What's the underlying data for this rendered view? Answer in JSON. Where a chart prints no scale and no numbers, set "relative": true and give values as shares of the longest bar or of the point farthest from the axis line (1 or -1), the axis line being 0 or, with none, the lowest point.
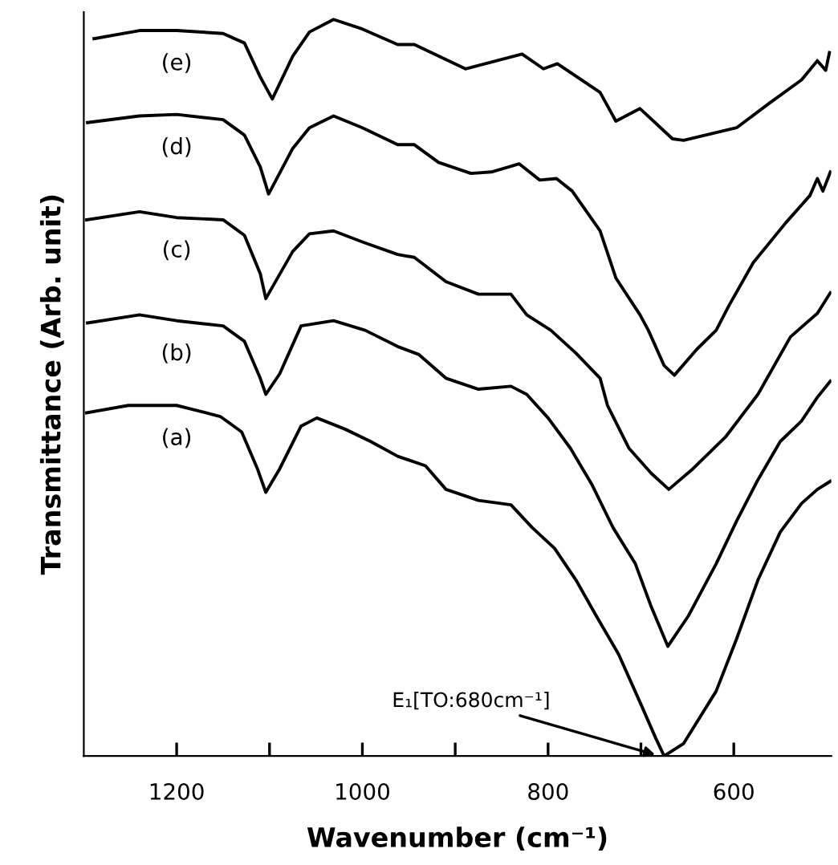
{
  "chart_data": {
    "type": "line",
    "relative": true,
    "xlabel": "Wavenumber (cm⁻¹)",
    "ylabel": "Transmittance (Arb. unit)",
    "xlim": [
      1300,
      495
    ],
    "xticks": [
      1200,
      {
        "value": 1100,
        "label": null
      },
      1000,
      {
        "value": 900,
        "label": null
      },
      800,
      {
        "value": 700,
        "label": null
      },
      600
    ],
    "grid": false,
    "legend": false,
    "marker": "none",
    "line_style": "solid",
    "tick_labels": "x",
    "annotations": [
      {
        "text": "E₁[TO:680cm⁻¹]",
        "x": 680,
        "y": 0
      }
    ],
    "series": [
      {
        "name": "(e)",
        "color": "#000000",
        "x": [
          1289,
          1240,
          1200,
          1150,
          1127,
          1110,
          1097,
          1075,
          1057,
          1031,
          1000,
          962,
          944,
          889,
          828,
          805,
          790,
          744,
          727,
          701,
          666,
          654,
          597,
          562,
          527,
          510,
          501,
          497
        ],
        "values": [
          0.974,
          0.985,
          0.985,
          0.981,
          0.968,
          0.922,
          0.892,
          0.95,
          0.983,
          1.0,
          0.987,
          0.966,
          0.966,
          0.933,
          0.953,
          0.933,
          0.94,
          0.901,
          0.862,
          0.879,
          0.838,
          0.836,
          0.853,
          0.886,
          0.918,
          0.944,
          0.931,
          0.955
        ]
      },
      {
        "name": "(d)",
        "color": "#000000",
        "x": [
          1296,
          1240,
          1200,
          1150,
          1127,
          1110,
          1101,
          1075,
          1057,
          1031,
          1000,
          962,
          944,
          918,
          883,
          861,
          831,
          809,
          791,
          774,
          744,
          727,
          701,
          692,
          675,
          664,
          640,
          619,
          605,
          579,
          544,
          518,
          510,
          504,
          496
        ],
        "values": [
          0.86,
          0.869,
          0.871,
          0.864,
          0.843,
          0.8,
          0.763,
          0.825,
          0.853,
          0.869,
          0.853,
          0.83,
          0.83,
          0.806,
          0.791,
          0.793,
          0.804,
          0.782,
          0.784,
          0.767,
          0.713,
          0.649,
          0.599,
          0.578,
          0.53,
          0.517,
          0.552,
          0.578,
          0.612,
          0.67,
          0.724,
          0.761,
          0.784,
          0.767,
          0.793
        ]
      },
      {
        "name": "(c)",
        "color": "#000000",
        "x": [
          1297,
          1240,
          1200,
          1150,
          1127,
          1110,
          1104,
          1075,
          1057,
          1031,
          1000,
          962,
          944,
          910,
          875,
          840,
          823,
          797,
          770,
          744,
          736,
          713,
          689,
          670,
          644,
          609,
          574,
          539,
          510,
          496
        ],
        "values": [
          0.728,
          0.739,
          0.731,
          0.728,
          0.707,
          0.655,
          0.621,
          0.685,
          0.709,
          0.713,
          0.698,
          0.681,
          0.677,
          0.644,
          0.627,
          0.627,
          0.599,
          0.578,
          0.547,
          0.513,
          0.476,
          0.418,
          0.384,
          0.362,
          0.39,
          0.433,
          0.491,
          0.569,
          0.601,
          0.629
        ]
      },
      {
        "name": "(b)",
        "color": "#000000",
        "x": [
          1296,
          1240,
          1200,
          1150,
          1127,
          1110,
          1104,
          1089,
          1066,
          1031,
          997,
          962,
          939,
          910,
          875,
          840,
          823,
          800,
          776,
          753,
          730,
          706,
          689,
          671,
          649,
          619,
          597,
          574,
          550,
          527,
          510,
          496
        ],
        "values": [
          0.588,
          0.599,
          0.591,
          0.584,
          0.563,
          0.513,
          0.491,
          0.519,
          0.584,
          0.591,
          0.578,
          0.556,
          0.545,
          0.513,
          0.498,
          0.502,
          0.491,
          0.459,
          0.418,
          0.369,
          0.31,
          0.261,
          0.203,
          0.149,
          0.19,
          0.261,
          0.319,
          0.375,
          0.427,
          0.455,
          0.487,
          0.509
        ]
      },
      {
        "name": "(a)",
        "color": "#000000",
        "x": [
          1297,
          1252,
          1200,
          1153,
          1130,
          1113,
          1104,
          1089,
          1066,
          1049,
          1019,
          991,
          962,
          932,
          910,
          875,
          840,
          817,
          793,
          770,
          748,
          724,
          701,
          684,
          675,
          654,
          619,
          597,
          574,
          550,
          527,
          510,
          496
        ],
        "values": [
          0.466,
          0.476,
          0.476,
          0.461,
          0.44,
          0.39,
          0.358,
          0.39,
          0.448,
          0.459,
          0.444,
          0.427,
          0.407,
          0.394,
          0.362,
          0.347,
          0.341,
          0.31,
          0.282,
          0.239,
          0.19,
          0.138,
          0.073,
          0.024,
          0.0,
          0.017,
          0.088,
          0.159,
          0.239,
          0.304,
          0.343,
          0.362,
          0.373
        ]
      }
    ]
  }
}
